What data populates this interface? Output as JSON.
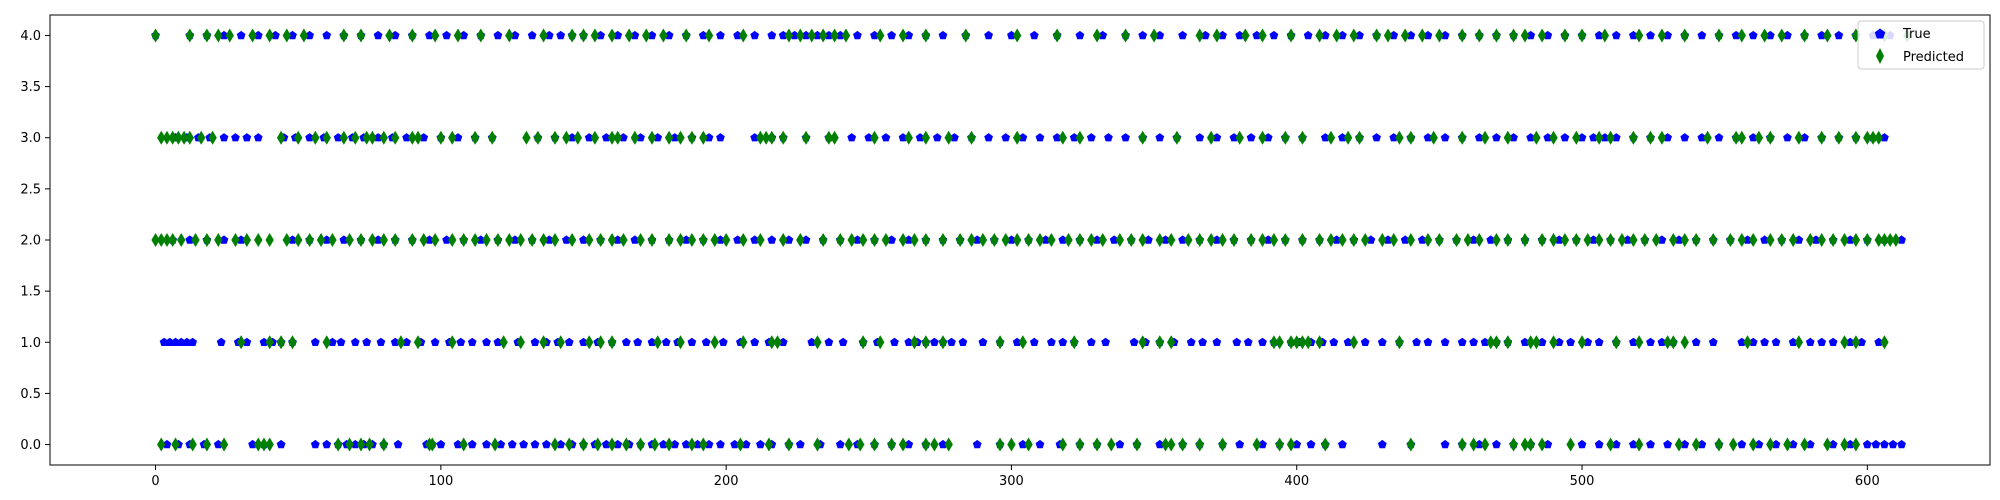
{
  "chart_data": {
    "type": "scatter",
    "title": "",
    "xlabel": "",
    "ylabel": "",
    "xlim": [
      -37,
      643
    ],
    "ylim": [
      -0.2,
      4.2
    ],
    "xticks": [
      0,
      100,
      200,
      300,
      400,
      500,
      600
    ],
    "xtick_labels": [
      "0",
      "100",
      "200",
      "300",
      "400",
      "500",
      "600"
    ],
    "yticks": [
      0,
      0.5,
      1,
      1.5,
      2,
      2.5,
      3,
      3.5,
      4
    ],
    "ytick_labels": [
      "0.0",
      "0.5",
      "1.0",
      "1.5",
      "2.0",
      "2.5",
      "3.0",
      "3.5",
      "4.0"
    ],
    "grid": false,
    "legend_position": "top-right",
    "series": [
      {
        "name": "True",
        "color": "#0000ff",
        "marker": "pentagon",
        "points_by_y": {
          "0": [
            4,
            8,
            12,
            17,
            22,
            34,
            38,
            44,
            56,
            60,
            64,
            67,
            70,
            73,
            76,
            80,
            85,
            95,
            97,
            100,
            106,
            111,
            116,
            121,
            125,
            129,
            133,
            137,
            142,
            146,
            150,
            154,
            158,
            162,
            166,
            170,
            174,
            178,
            182,
            186,
            190,
            194,
            198,
            203,
            207,
            212,
            216,
            222,
            226,
            233,
            240,
            246,
            252,
            258,
            264,
            270,
            276,
            288,
            296,
            304,
            310,
            317,
            324,
            330,
            338,
            344,
            352,
            360,
            366,
            374,
            380,
            388,
            394,
            400,
            405,
            410,
            416,
            430,
            440,
            452,
            458,
            464,
            470,
            476,
            482,
            488,
            500,
            506,
            512,
            518,
            524,
            530,
            536,
            542,
            548,
            556,
            562,
            568,
            574,
            580,
            588,
            594,
            600,
            603,
            606,
            609,
            612
          ],
          "1": [
            3,
            5,
            7,
            9,
            11,
            13,
            23,
            29,
            32,
            38,
            41,
            44,
            48,
            56,
            62,
            65,
            70,
            74,
            79,
            84,
            88,
            93,
            98,
            103,
            107,
            111,
            116,
            120,
            127,
            133,
            137,
            141,
            145,
            150,
            155,
            160,
            165,
            169,
            174,
            179,
            183,
            188,
            193,
            199,
            205,
            210,
            215,
            220,
            230,
            236,
            241,
            248,
            253,
            259,
            264,
            267,
            270,
            273,
            276,
            279,
            283,
            290,
            296,
            302,
            308,
            314,
            318,
            322,
            328,
            333,
            343,
            347,
            352,
            357,
            363,
            367,
            372,
            379,
            383,
            388,
            392,
            398,
            401,
            405,
            409,
            413,
            418,
            424,
            430,
            436,
            442,
            446,
            452,
            458,
            462,
            466,
            470,
            474,
            480,
            486,
            492,
            496,
            502,
            506,
            512,
            518,
            524,
            528,
            532,
            540,
            546,
            556,
            560,
            564,
            568,
            574,
            580,
            584,
            588,
            594,
            598,
            604
          ],
          "2": [
            6,
            12,
            18,
            24,
            30,
            48,
            54,
            60,
            66,
            72,
            78,
            84,
            90,
            96,
            102,
            108,
            114,
            120,
            126,
            132,
            138,
            144,
            150,
            156,
            162,
            168,
            174,
            180,
            186,
            192,
            198,
            204,
            210,
            216,
            222,
            228,
            234,
            240,
            246,
            252,
            258,
            264,
            270,
            276,
            282,
            288,
            294,
            300,
            306,
            312,
            318,
            324,
            330,
            336,
            342,
            348,
            354,
            360,
            366,
            372,
            378,
            384,
            390,
            396,
            402,
            408,
            414,
            420,
            426,
            432,
            438,
            444,
            450,
            456,
            462,
            468,
            474,
            480,
            486,
            492,
            498,
            504,
            510,
            516,
            522,
            528,
            534,
            540,
            546,
            552,
            558,
            564,
            570,
            576,
            582,
            588,
            594,
            600,
            606,
            612
          ],
          "3": [
            7,
            11,
            15,
            19,
            24,
            28,
            32,
            36,
            45,
            49,
            54,
            59,
            64,
            69,
            73,
            78,
            83,
            88,
            94,
            100,
            106,
            112,
            118,
            134,
            140,
            146,
            152,
            158,
            164,
            170,
            176,
            182,
            188,
            194,
            198,
            210,
            216,
            220,
            228,
            236,
            244,
            250,
            256,
            262,
            268,
            274,
            280,
            286,
            292,
            298,
            304,
            310,
            316,
            322,
            328,
            334,
            340,
            346,
            352,
            358,
            366,
            372,
            378,
            384,
            390,
            396,
            402,
            410,
            416,
            422,
            428,
            434,
            440,
            446,
            452,
            458,
            464,
            470,
            476,
            482,
            488,
            494,
            500,
            504,
            508,
            512,
            518,
            524,
            530,
            536,
            542,
            548,
            554,
            560,
            566,
            572,
            578,
            584,
            590,
            596,
            602,
            606
          ],
          "4": [
            0,
            12,
            18,
            24,
            30,
            36,
            42,
            48,
            54,
            60,
            66,
            72,
            78,
            84,
            90,
            96,
            102,
            108,
            114,
            120,
            126,
            132,
            138,
            142,
            146,
            150,
            156,
            162,
            168,
            174,
            180,
            186,
            192,
            198,
            204,
            210,
            216,
            220,
            224,
            228,
            232,
            236,
            240,
            246,
            252,
            258,
            264,
            270,
            276,
            284,
            292,
            300,
            308,
            316,
            324,
            332,
            340,
            346,
            352,
            360,
            368,
            374,
            380,
            386,
            392,
            398,
            404,
            410,
            416,
            422,
            428,
            434,
            440,
            446,
            452,
            458,
            464,
            470,
            476,
            482,
            488,
            494,
            500,
            506,
            512,
            518,
            524,
            530,
            536,
            542,
            548,
            554,
            560,
            566,
            572,
            578,
            584,
            590,
            596,
            602,
            608
          ]
        }
      },
      {
        "name": "Predicted",
        "color": "#008000",
        "marker": "thin_diamond",
        "points_by_y": {
          "0": [
            2,
            7,
            13,
            18,
            24,
            36,
            38,
            40,
            64,
            68,
            72,
            75,
            80,
            96,
            97,
            108,
            119,
            140,
            145,
            150,
            155,
            160,
            165,
            170,
            175,
            180,
            188,
            192,
            205,
            215,
            222,
            232,
            243,
            247,
            252,
            258,
            262,
            270,
            273,
            278,
            296,
            300,
            306,
            318,
            324,
            330,
            335,
            344,
            354,
            356,
            360,
            366,
            374,
            386,
            394,
            398,
            410,
            440,
            458,
            462,
            466,
            476,
            480,
            482,
            486,
            496,
            510,
            520,
            534,
            540,
            548,
            553,
            560,
            566,
            572,
            578,
            586,
            592,
            596
          ],
          "1": [
            30,
            40,
            44,
            48,
            60,
            86,
            92,
            104,
            122,
            128,
            136,
            142,
            152,
            156,
            160,
            176,
            184,
            196,
            206,
            216,
            218,
            232,
            248,
            254,
            266,
            270,
            276,
            296,
            304,
            322,
            346,
            352,
            356,
            392,
            394,
            398,
            400,
            402,
            404,
            408,
            420,
            436,
            468,
            470,
            474,
            482,
            484,
            490,
            500,
            512,
            520,
            530,
            532,
            536,
            558,
            576,
            592,
            596,
            606
          ],
          "2": [
            0,
            2,
            4,
            6,
            9,
            14,
            18,
            22,
            28,
            32,
            36,
            40,
            46,
            50,
            54,
            58,
            62,
            68,
            72,
            76,
            80,
            84,
            90,
            94,
            98,
            104,
            108,
            112,
            116,
            120,
            124,
            128,
            132,
            136,
            140,
            146,
            152,
            156,
            160,
            164,
            170,
            174,
            180,
            184,
            188,
            192,
            196,
            200,
            206,
            212,
            220,
            226,
            234,
            240,
            244,
            248,
            252,
            256,
            262,
            266,
            270,
            276,
            282,
            286,
            290,
            294,
            298,
            302,
            306,
            310,
            314,
            320,
            324,
            328,
            332,
            338,
            342,
            346,
            352,
            356,
            362,
            366,
            370,
            374,
            378,
            384,
            388,
            392,
            396,
            402,
            408,
            412,
            416,
            420,
            424,
            430,
            434,
            440,
            446,
            450,
            456,
            460,
            464,
            470,
            474,
            480,
            486,
            490,
            494,
            498,
            502,
            506,
            510,
            514,
            518,
            522,
            526,
            532,
            536,
            540,
            546,
            552,
            556,
            560,
            566,
            570,
            574,
            580,
            584,
            588,
            592,
            596,
            600,
            604,
            606,
            608,
            610
          ],
          "3": [
            2,
            4,
            6,
            8,
            10,
            12,
            16,
            20,
            44,
            50,
            56,
            60,
            66,
            70,
            74,
            76,
            80,
            84,
            90,
            92,
            100,
            104,
            112,
            118,
            130,
            134,
            140,
            144,
            148,
            154,
            160,
            162,
            168,
            174,
            180,
            184,
            188,
            192,
            212,
            214,
            216,
            220,
            228,
            236,
            238,
            252,
            264,
            270,
            278,
            286,
            302,
            318,
            324,
            346,
            358,
            370,
            380,
            388,
            396,
            402,
            412,
            418,
            422,
            436,
            440,
            448,
            458,
            466,
            474,
            484,
            490,
            498,
            506,
            510,
            518,
            524,
            528,
            544,
            554,
            556,
            562,
            566,
            576,
            584,
            590,
            596,
            600,
            602,
            604
          ],
          "4": [
            0,
            12,
            18,
            22,
            26,
            34,
            40,
            46,
            52,
            66,
            72,
            82,
            90,
            98,
            106,
            114,
            124,
            136,
            146,
            150,
            154,
            160,
            166,
            172,
            178,
            186,
            194,
            206,
            222,
            226,
            230,
            234,
            238,
            242,
            254,
            262,
            270,
            284,
            302,
            316,
            330,
            340,
            350,
            366,
            372,
            382,
            388,
            398,
            408,
            414,
            420,
            428,
            432,
            438,
            444,
            450,
            458,
            464,
            470,
            476,
            480,
            486,
            494,
            500,
            508,
            520,
            528,
            536,
            548,
            556,
            564,
            570,
            578,
            586,
            596,
            606,
            614
          ]
        }
      }
    ]
  }
}
